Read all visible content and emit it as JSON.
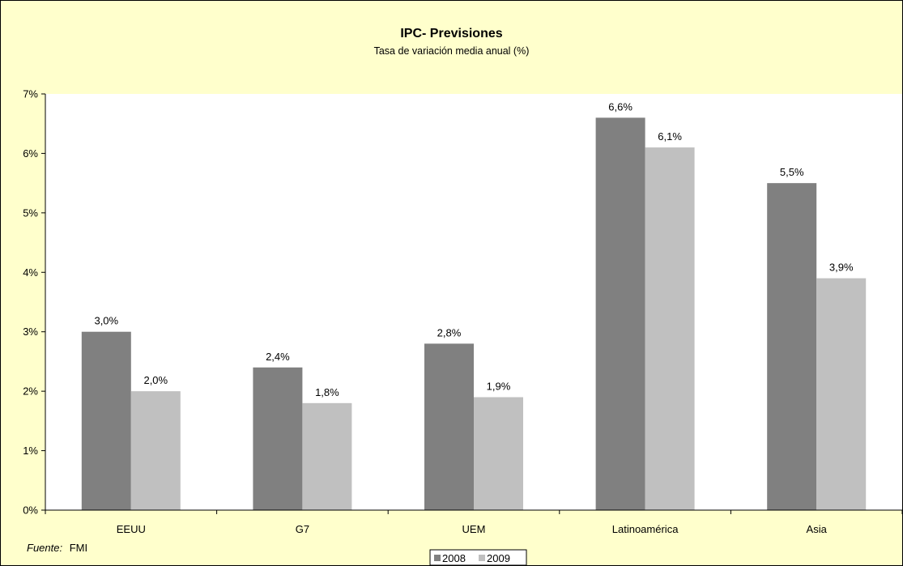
{
  "chart_data": {
    "type": "bar",
    "title": "IPC- Previsiones",
    "subtitle": "Tasa de variación media anual (%)",
    "xlabel": "",
    "ylabel": "",
    "categories": [
      "EEUU",
      "G7",
      "UEM",
      "Latinoamérica",
      "Asia"
    ],
    "series": [
      {
        "name": "2008",
        "values": [
          3.0,
          2.4,
          2.8,
          6.6,
          5.5
        ],
        "labels": [
          "3,0%",
          "2,4%",
          "2,8%",
          "6,6%",
          "5,5%"
        ],
        "color": "#808080"
      },
      {
        "name": "2009",
        "values": [
          2.0,
          1.8,
          1.9,
          6.1,
          3.9
        ],
        "labels": [
          "2,0%",
          "1,8%",
          "1,9%",
          "6,1%",
          "3,9%"
        ],
        "color": "#c0c0c0"
      }
    ],
    "ylim": [
      0,
      7
    ],
    "yticks": [
      0,
      1,
      2,
      3,
      4,
      5,
      6,
      7
    ],
    "ytick_labels": [
      "0%",
      "1%",
      "2%",
      "3%",
      "4%",
      "5%",
      "6%",
      "7%"
    ],
    "grid": false,
    "legend_position": "bottom-center",
    "background_color": "#ffffcc",
    "plot_background_color": "#ffffff"
  },
  "source": {
    "label": "Fuente:",
    "value": "FMI"
  }
}
